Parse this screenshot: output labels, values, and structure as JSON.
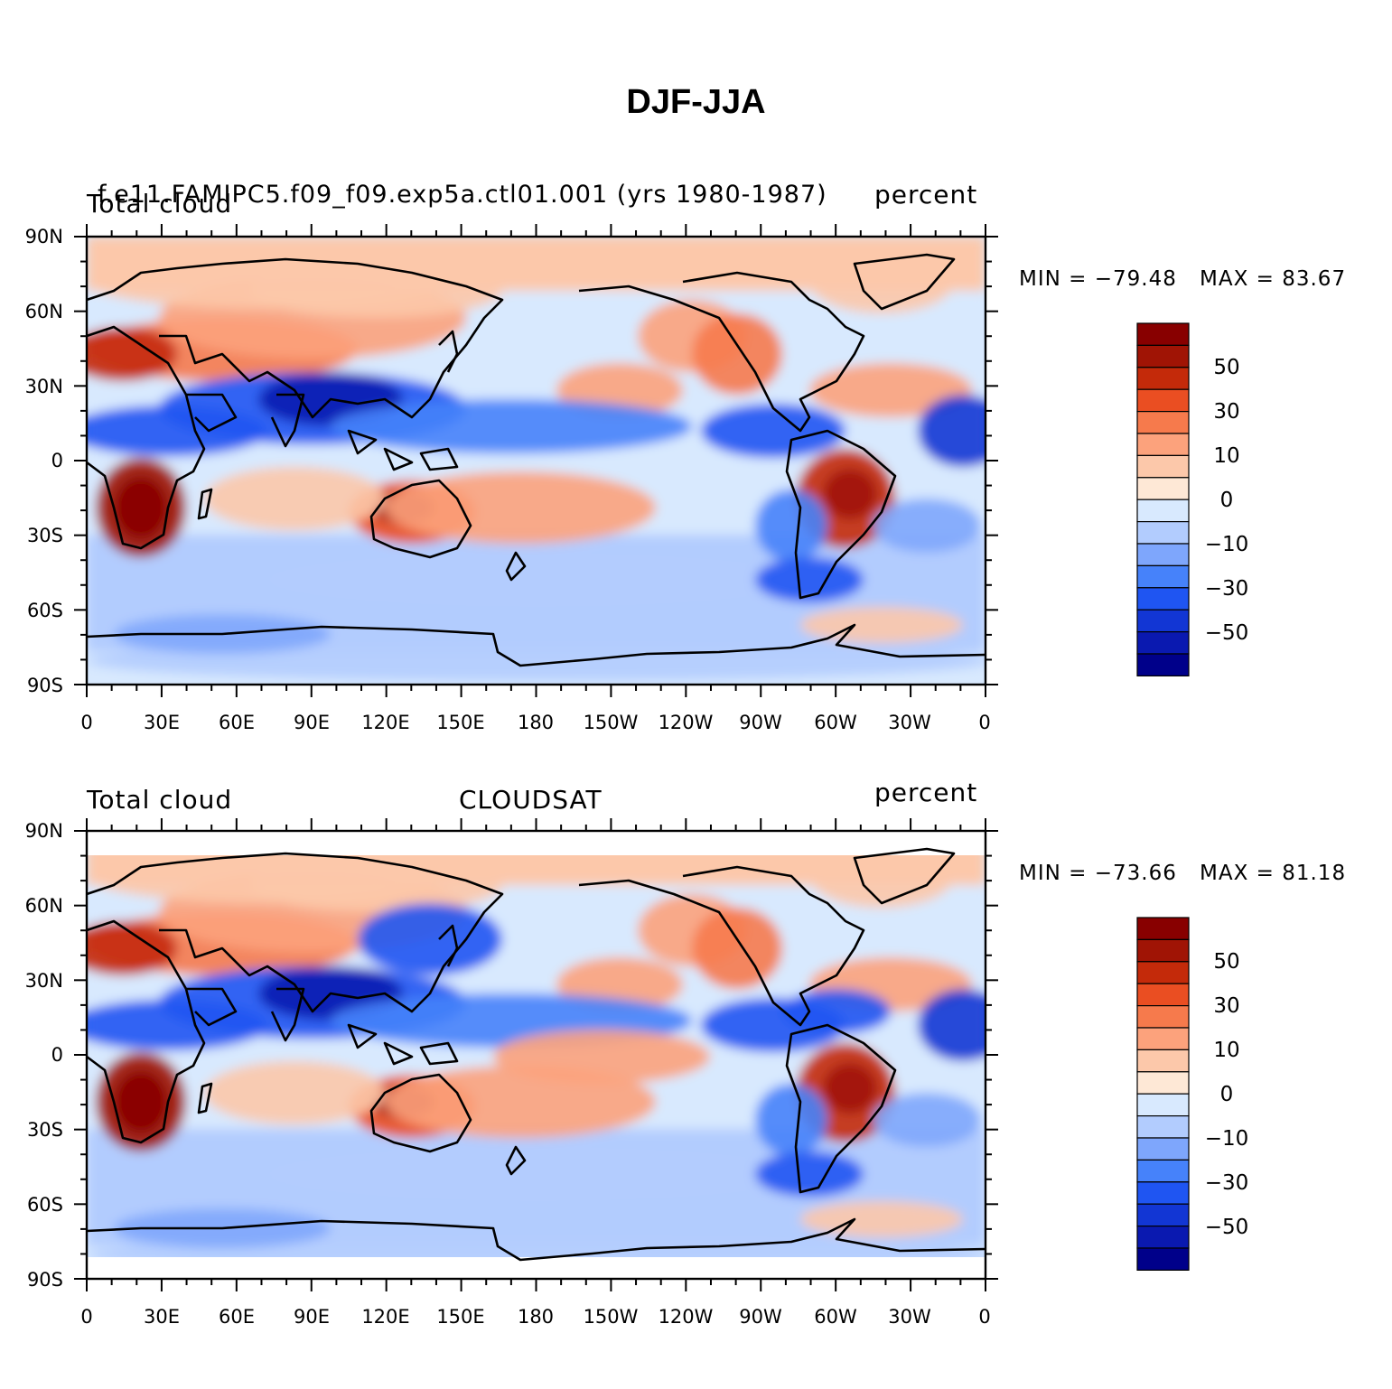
{
  "title": "DJF-JJA",
  "colors": {
    "scale": [
      "#00008a",
      "#0a19b0",
      "#1236d4",
      "#1f55f2",
      "#4682fa",
      "#7ea6fc",
      "#b2ccfe",
      "#d8e9fe",
      "#fee8d6",
      "#fcc8aa",
      "#fca27c",
      "#f67a4c",
      "#ea4e22",
      "#c42a0a",
      "#a01405",
      "#880000"
    ],
    "coast": "#000000"
  },
  "axes": {
    "lat_labels": [
      "90N",
      "60N",
      "30N",
      "0",
      "30S",
      "60S",
      "90S"
    ],
    "lon_labels": [
      "0",
      "30E",
      "60E",
      "90E",
      "120E",
      "150E",
      "180",
      "150W",
      "120W",
      "90W",
      "60W",
      "30W",
      "0"
    ]
  },
  "colorbar_labels": [
    "50",
    "30",
    "10",
    "0",
    "−10",
    "−30",
    "−50"
  ],
  "panels": [
    {
      "left_label": "Total cloud",
      "center_label": "f.e11.FAMIPC5.f09_f09.exp5a.ctl01.001 (yrs 1980-1987)",
      "right_label": "percent",
      "min_label": "MIN = −79.48",
      "max_label": "MAX =  83.67"
    },
    {
      "left_label": "Total cloud",
      "center_label": "CLOUDSAT",
      "right_label": "percent",
      "min_label": "MIN = −73.66",
      "max_label": "MAX =  81.18"
    }
  ]
}
